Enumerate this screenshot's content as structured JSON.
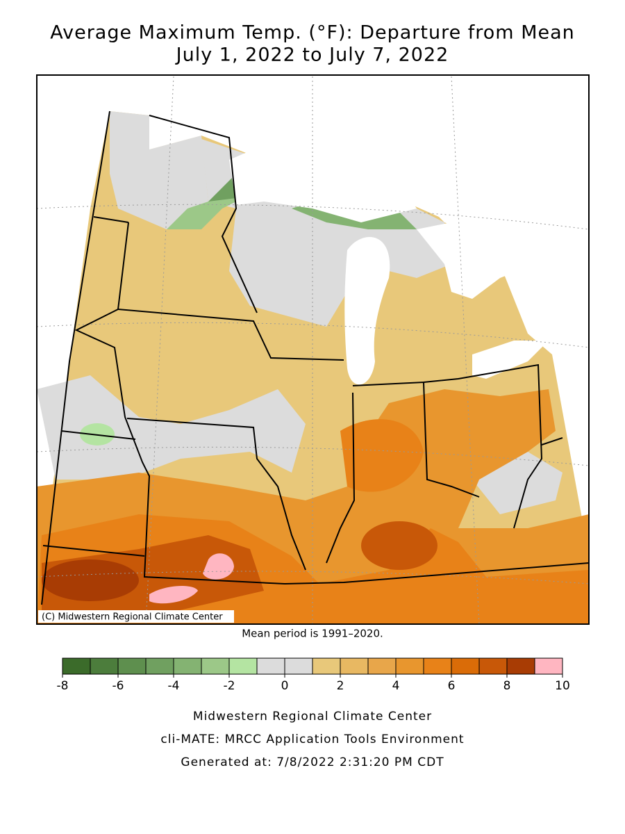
{
  "title": [
    "Average Maximum Temp. (°F): Departure from Mean",
    "July 1, 2022 to July 7, 2022"
  ],
  "map": {
    "credit": "(C) Midwestern Regional Climate Center"
  },
  "note": "Mean period is 1991–2020.",
  "legend": {
    "bins": [
      -8,
      -7,
      -6,
      -5,
      -4,
      -3,
      -2,
      -1,
      0,
      1,
      2,
      3,
      4,
      5,
      6,
      7,
      8,
      9,
      10
    ],
    "colors": [
      "#3b6b2a",
      "#4c7d3c",
      "#5e8f4e",
      "#70a060",
      "#84b372",
      "#9cc888",
      "#b4e4a2",
      "#dcdcdc",
      "#dcdcdc",
      "#e8c87a",
      "#e8b862",
      "#e8a64a",
      "#e8962e",
      "#e88218",
      "#da6c08",
      "#c85808",
      "#a83c04",
      "#ffb6c1"
    ],
    "ticks": [
      -8,
      -6,
      -4,
      -2,
      0,
      2,
      4,
      6,
      8,
      10
    ]
  },
  "footer": [
    "Midwestern Regional Climate Center",
    "cli-MATE: MRCC Application Tools Environment",
    "Generated at: 7/8/2022 2:31:20 PM CDT"
  ]
}
